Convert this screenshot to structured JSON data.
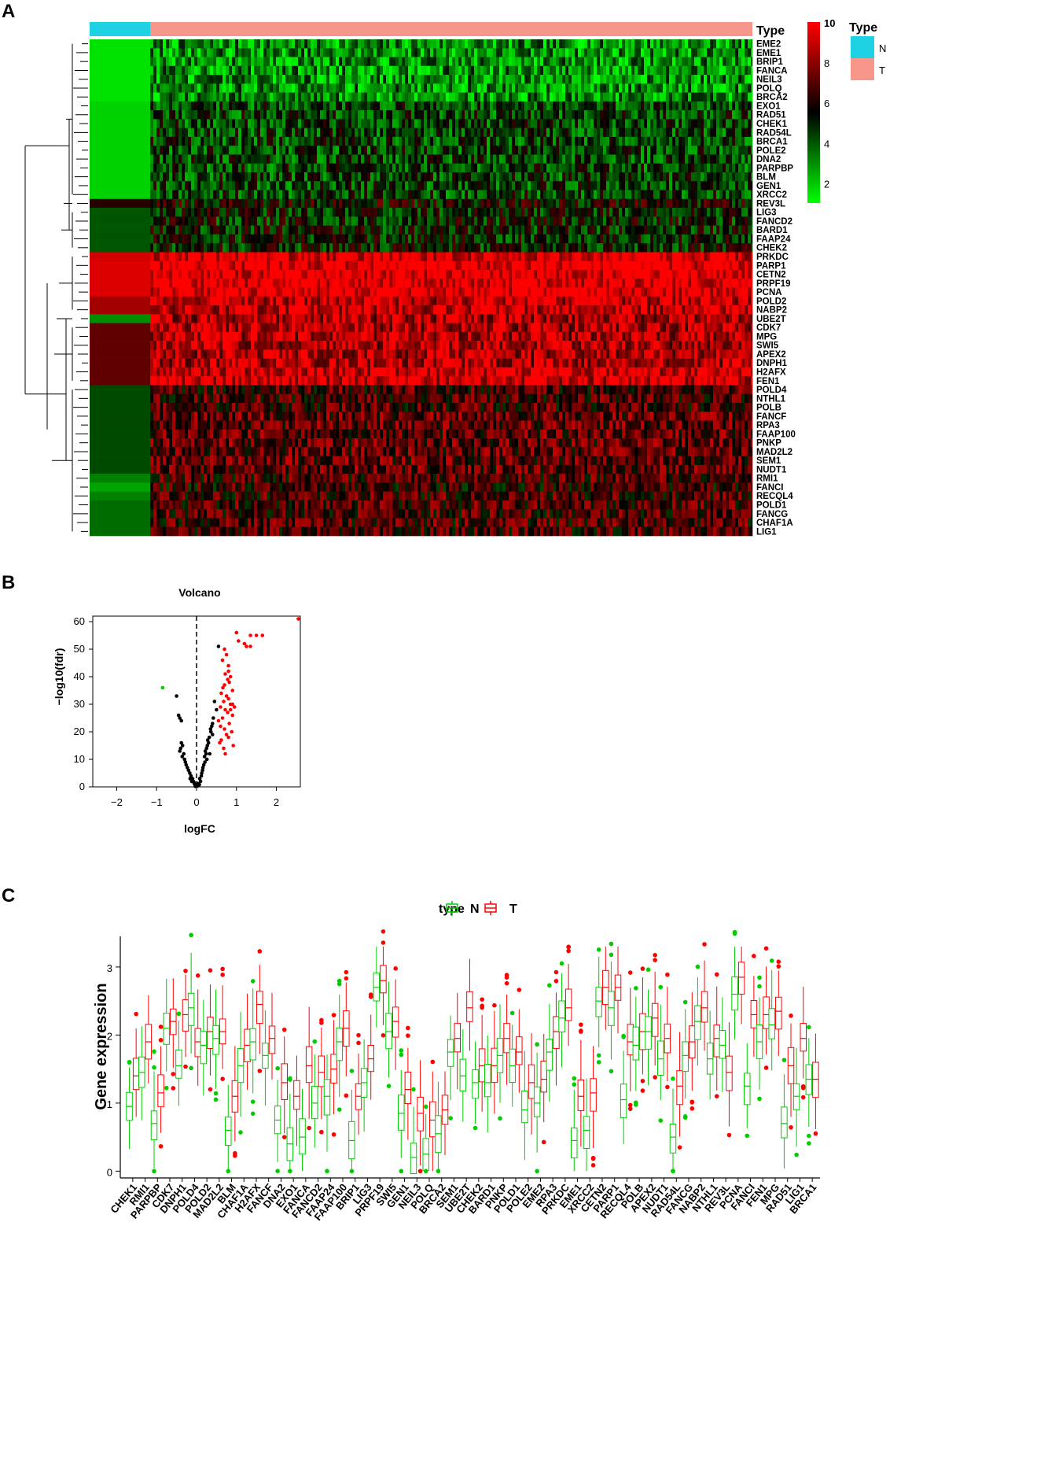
{
  "panels": {
    "a": "A",
    "b": "B",
    "c": "C"
  },
  "chart_data": [
    {
      "type": "heatmap",
      "panel": "A",
      "colorbar": {
        "ticks": [
          10,
          8,
          6,
          4,
          2
        ],
        "colors": [
          "#ff0000",
          "#000000",
          "#00ff00"
        ]
      },
      "annotation": {
        "title": "Type",
        "row_label": "Type",
        "groups": [
          {
            "name": "N",
            "color": "#1ed1e3"
          },
          {
            "name": "T",
            "color": "#f7968b"
          }
        ]
      },
      "genes": [
        "EME2",
        "EME1",
        "BRIP1",
        "FANCA",
        "NEIL3",
        "POLQ",
        "BRCA2",
        "EXO1",
        "RAD51",
        "CHEK1",
        "RAD54L",
        "BRCA1",
        "POLE2",
        "DNA2",
        "PARPBP",
        "BLM",
        "GEN1",
        "XRCC2",
        "REV3L",
        "LIG3",
        "FANCD2",
        "BARD1",
        "FAAP24",
        "CHEK2",
        "PRKDC",
        "PARP1",
        "CETN2",
        "PRPF19",
        "PCNA",
        "POLD2",
        "NABP2",
        "UBE2T",
        "CDK7",
        "MPG",
        "SWI5",
        "APEX2",
        "DNPH1",
        "H2AFX",
        "FEN1",
        "POLD4",
        "NTHL1",
        "POLB",
        "FANCF",
        "RPA3",
        "FAAP100",
        "PNKP",
        "MAD2L2",
        "SEM1",
        "NUDT1",
        "RMI1",
        "FANCI",
        "RECQL4",
        "POLD1",
        "FANCG",
        "CHAF1A",
        "LIG1"
      ],
      "mean_expression_N": [
        1.5,
        1.5,
        1.5,
        1.5,
        1.5,
        1.5,
        1.5,
        1.8,
        1.8,
        1.8,
        1.8,
        1.8,
        1.8,
        1.8,
        1.8,
        1.8,
        1.8,
        1.8,
        6.2,
        4.0,
        4.0,
        4.0,
        4.0,
        4.0,
        9.2,
        9.4,
        9.4,
        9.4,
        9.4,
        8.4,
        8.4,
        3.0,
        7.2,
        7.2,
        7.2,
        7.2,
        7.2,
        7.2,
        7.2,
        4.2,
        4.2,
        4.2,
        4.2,
        4.2,
        4.2,
        4.2,
        4.2,
        4.2,
        4.2,
        3.2,
        2.6,
        3.2,
        3.6,
        3.6,
        3.6,
        3.6
      ],
      "mean_expression_T": [
        3.0,
        3.0,
        3.0,
        3.0,
        3.0,
        3.0,
        3.0,
        4.4,
        4.4,
        4.4,
        4.4,
        4.4,
        4.4,
        4.4,
        4.4,
        4.4,
        4.4,
        4.4,
        5.6,
        5.0,
        5.0,
        5.0,
        5.0,
        5.0,
        9.6,
        9.9,
        9.9,
        9.9,
        9.9,
        9.0,
        9.0,
        8.6,
        8.6,
        8.6,
        8.6,
        8.6,
        8.6,
        9.3,
        9.3,
        6.6,
        6.6,
        6.6,
        7.0,
        7.0,
        7.0,
        7.0,
        7.0,
        7.0,
        7.0,
        6.6,
        6.2,
        6.6,
        6.6,
        6.6,
        6.6,
        6.6
      ]
    },
    {
      "type": "scatter",
      "panel": "B",
      "title": "Volcano",
      "xlabel": "logFC",
      "ylabel": "−log10(fdr)",
      "xlim": [
        -2.6,
        2.6
      ],
      "ylim": [
        0,
        62
      ],
      "xticks": [
        -2,
        -1,
        0,
        1,
        2
      ],
      "yticks": [
        0,
        10,
        20,
        30,
        40,
        50,
        60
      ],
      "points_up": [
        [
          2.55,
          61
        ],
        [
          1.0,
          56
        ],
        [
          1.05,
          53
        ],
        [
          1.2,
          52
        ],
        [
          1.25,
          51
        ],
        [
          1.35,
          55
        ],
        [
          1.5,
          55
        ],
        [
          1.65,
          55
        ],
        [
          1.35,
          51
        ],
        [
          0.7,
          50
        ],
        [
          0.75,
          48
        ],
        [
          0.65,
          46
        ],
        [
          0.8,
          44
        ],
        [
          0.72,
          41
        ],
        [
          0.85,
          40
        ],
        [
          0.78,
          39
        ],
        [
          0.82,
          38
        ],
        [
          0.7,
          37
        ],
        [
          0.9,
          35
        ],
        [
          0.62,
          34
        ],
        [
          0.75,
          33
        ],
        [
          0.8,
          32
        ],
        [
          0.68,
          31
        ],
        [
          0.85,
          30
        ],
        [
          0.6,
          29
        ],
        [
          0.72,
          28
        ],
        [
          0.78,
          27
        ],
        [
          0.9,
          26
        ],
        [
          0.65,
          25
        ],
        [
          0.55,
          24
        ],
        [
          0.82,
          23
        ],
        [
          0.6,
          22
        ],
        [
          0.7,
          21
        ],
        [
          0.88,
          20
        ],
        [
          0.75,
          19
        ],
        [
          0.8,
          18
        ],
        [
          0.62,
          17
        ],
        [
          0.58,
          16
        ],
        [
          0.92,
          15
        ],
        [
          0.68,
          14
        ],
        [
          0.72,
          12
        ],
        [
          0.85,
          28
        ],
        [
          0.9,
          30
        ],
        [
          0.95,
          29
        ],
        [
          0.66,
          36
        ],
        [
          0.8,
          42
        ]
      ],
      "points_down": [
        [
          -0.85,
          36
        ]
      ],
      "points_ns": [
        [
          0.55,
          51
        ],
        [
          -0.5,
          33
        ],
        [
          -0.45,
          26
        ],
        [
          -0.42,
          25
        ],
        [
          -0.38,
          24
        ],
        [
          0.45,
          31
        ],
        [
          0.4,
          23
        ],
        [
          0.35,
          21
        ],
        [
          0.28,
          17
        ],
        [
          0.25,
          14
        ],
        [
          0.2,
          11
        ],
        [
          0.18,
          8
        ],
        [
          0.15,
          6
        ],
        [
          0.12,
          4
        ],
        [
          0.1,
          2
        ],
        [
          0.05,
          1
        ],
        [
          0.02,
          0.3
        ],
        [
          -0.02,
          0.5
        ],
        [
          -0.05,
          1
        ],
        [
          -0.08,
          2
        ],
        [
          -0.1,
          3
        ],
        [
          -0.14,
          4
        ],
        [
          -0.17,
          5
        ],
        [
          -0.2,
          6
        ],
        [
          -0.23,
          7
        ],
        [
          -0.26,
          8
        ],
        [
          -0.3,
          10
        ],
        [
          -0.32,
          12
        ],
        [
          -0.35,
          15
        ],
        [
          -0.38,
          16
        ],
        [
          -0.4,
          14
        ],
        [
          -0.42,
          13
        ],
        [
          -0.36,
          11
        ],
        [
          -0.28,
          9
        ],
        [
          0.3,
          16
        ],
        [
          0.32,
          18
        ],
        [
          0.36,
          20
        ],
        [
          0.38,
          22
        ],
        [
          0.42,
          25
        ],
        [
          0.5,
          28
        ],
        [
          0.22,
          13
        ],
        [
          0.27,
          15
        ],
        [
          0.33,
          12
        ],
        [
          0.4,
          19
        ],
        [
          0.08,
          3
        ],
        [
          0.13,
          5
        ],
        [
          0.21,
          9
        ],
        [
          0.26,
          10
        ],
        [
          -0.12,
          2
        ],
        [
          -0.16,
          3
        ],
        [
          -0.06,
          1.5
        ],
        [
          0.03,
          1.2
        ],
        [
          0.07,
          0.8
        ],
        [
          -0.03,
          0.2
        ],
        [
          0.16,
          7
        ],
        [
          0.24,
          12
        ]
      ],
      "colors": {
        "up": "#ff0000",
        "down": "#00cc00",
        "ns": "#000000"
      }
    },
    {
      "type": "box",
      "panel": "C",
      "ylabel": "Gene expression",
      "ylim": [
        -0.1,
        3.45
      ],
      "yticks": [
        0,
        1,
        2,
        3
      ],
      "legend": {
        "title": "type",
        "items": [
          "N",
          "T"
        ],
        "colors": [
          "#00cc00",
          "#ff0000"
        ]
      },
      "categories": [
        "CHEK1",
        "RMI1",
        "PARPBP",
        "CDK7",
        "DNPH1",
        "POLD4",
        "POLD2",
        "MAD2L2",
        "BLM",
        "CHAF1A",
        "H2AFX",
        "FANCF",
        "DNA2",
        "EXO1",
        "FANCA",
        "FANCD2",
        "FAAP24",
        "FAAP100",
        "BRIP1",
        "LIG3",
        "PRPF19",
        "SWI5",
        "GEN1",
        "NEIL3",
        "POLQ",
        "BRCA2",
        "SEM1",
        "UBE2T",
        "CHEK2",
        "BARD1",
        "PNKP",
        "POLD1",
        "POLE2",
        "EME2",
        "RPA3",
        "PRKDC",
        "EME1",
        "XRCC2",
        "CETN2",
        "PARP1",
        "RECQL4",
        "POLB",
        "APEX2",
        "NUDT1",
        "RAD54L",
        "FANCG",
        "NABP2",
        "NTHL1",
        "REV3L",
        "PCNA",
        "FANCI",
        "FEN1",
        "MPG",
        "RAD51",
        "LIG1",
        "BRCA1"
      ],
      "median_N": [
        0.95,
        1.45,
        0.7,
        2.1,
        1.55,
        2.4,
        1.85,
        1.95,
        0.6,
        1.55,
        1.9,
        1.7,
        0.75,
        0.4,
        0.5,
        1.0,
        1.1,
        1.9,
        0.45,
        1.3,
        2.7,
        2.05,
        0.85,
        0.2,
        0.25,
        0.55,
        1.75,
        1.4,
        1.3,
        1.3,
        1.7,
        1.55,
        0.9,
        1.0,
        1.75,
        2.25,
        0.45,
        0.6,
        2.5,
        2.4,
        1.05,
        1.85,
        2.05,
        1.65,
        0.5,
        1.7,
        2.2,
        1.65,
        1.85,
        2.6,
        1.25,
        1.9,
        2.15,
        0.7,
        1.1,
        1.35
      ],
      "median_T": [
        1.4,
        1.9,
        1.15,
        2.2,
        2.3,
        1.9,
        2.05,
        2.05,
        1.1,
        1.85,
        2.45,
        1.95,
        1.3,
        1.1,
        1.55,
        1.45,
        1.5,
        2.1,
        1.1,
        1.65,
        2.8,
        2.2,
        1.2,
        0.85,
        0.75,
        0.9,
        1.95,
        2.4,
        1.55,
        1.55,
        1.95,
        1.75,
        1.3,
        1.35,
        2.05,
        2.4,
        1.1,
        1.15,
        2.7,
        2.7,
        1.9,
        2.05,
        2.25,
        1.95,
        1.25,
        1.9,
        2.4,
        1.95,
        1.45,
        2.85,
        2.3,
        2.3,
        2.35,
        1.55,
        1.95,
        1.35
      ]
    }
  ]
}
